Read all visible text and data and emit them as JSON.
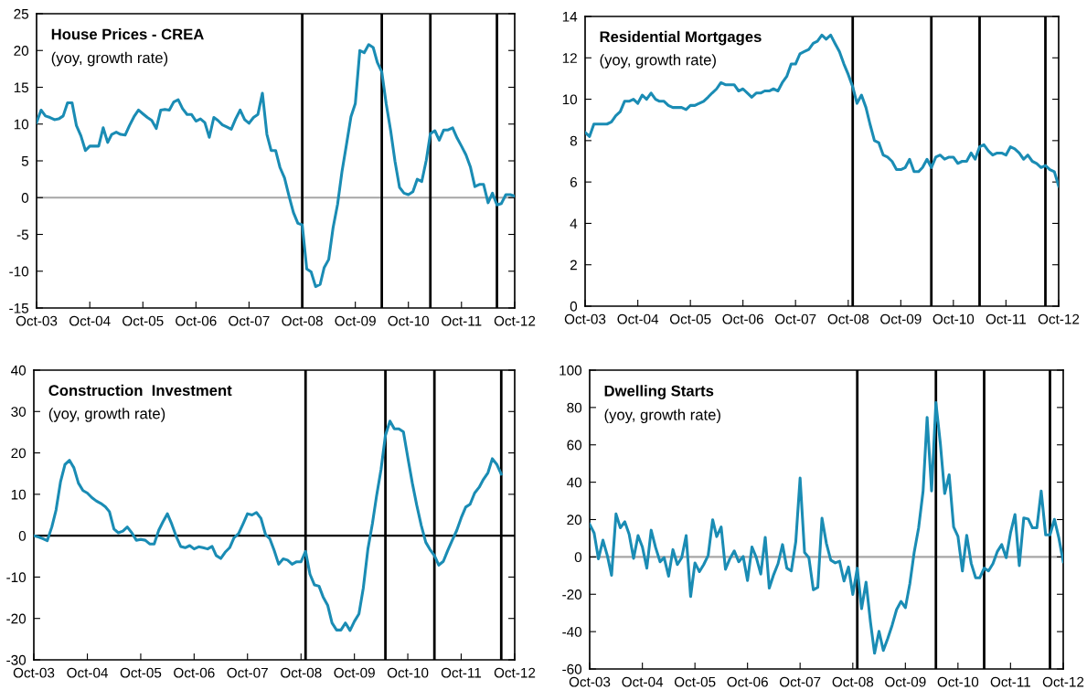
{
  "chart_data": [
    {
      "type": "line",
      "title": "House Prices - CREA",
      "subtitle": "(yoy, growth rate)",
      "line_style": "solid",
      "marker": "none",
      "grid": false,
      "legend": false,
      "x": [
        "2003-10",
        "2003-11",
        "2003-12",
        "2004-01",
        "2004-02",
        "2004-03",
        "2004-04",
        "2004-05",
        "2004-06",
        "2004-07",
        "2004-08",
        "2004-09",
        "2004-10",
        "2004-11",
        "2004-12",
        "2005-01",
        "2005-02",
        "2005-03",
        "2005-04",
        "2005-05",
        "2005-06",
        "2005-07",
        "2005-08",
        "2005-09",
        "2005-10",
        "2005-11",
        "2005-12",
        "2006-01",
        "2006-02",
        "2006-03",
        "2006-04",
        "2006-05",
        "2006-06",
        "2006-07",
        "2006-08",
        "2006-09",
        "2006-10",
        "2006-11",
        "2006-12",
        "2007-01",
        "2007-02",
        "2007-03",
        "2007-04",
        "2007-05",
        "2007-06",
        "2007-07",
        "2007-08",
        "2007-09",
        "2007-10",
        "2007-11",
        "2007-12",
        "2008-01",
        "2008-02",
        "2008-03",
        "2008-04",
        "2008-05",
        "2008-06",
        "2008-07",
        "2008-08",
        "2008-09",
        "2008-10",
        "2008-11",
        "2008-12",
        "2009-01",
        "2009-02",
        "2009-03",
        "2009-04",
        "2009-05",
        "2009-06",
        "2009-07",
        "2009-08",
        "2009-09",
        "2009-10",
        "2009-11",
        "2009-12",
        "2010-01",
        "2010-02",
        "2010-03",
        "2010-04",
        "2010-05",
        "2010-06",
        "2010-07",
        "2010-08",
        "2010-09",
        "2010-10",
        "2010-11",
        "2010-12",
        "2011-01",
        "2011-02",
        "2011-03",
        "2011-04",
        "2011-05",
        "2011-06",
        "2011-07",
        "2011-08",
        "2011-09",
        "2011-10",
        "2011-11",
        "2011-12",
        "2012-01",
        "2012-02",
        "2012-03",
        "2012-04",
        "2012-05",
        "2012-06",
        "2012-07",
        "2012-08",
        "2012-09",
        "2012-10"
      ],
      "series": [
        {
          "color": "#1a8cb4",
          "values": [
            10.2,
            11.9,
            11.1,
            10.9,
            10.6,
            10.7,
            11.1,
            12.9,
            12.9,
            9.8,
            8.4,
            6.4,
            7.0,
            7.0,
            7.0,
            9.5,
            7.5,
            8.6,
            8.9,
            8.6,
            8.5,
            9.8,
            11.0,
            11.9,
            11.4,
            10.9,
            10.5,
            9.4,
            11.9,
            12.0,
            11.9,
            13.0,
            13.3,
            12.1,
            11.3,
            11.3,
            10.4,
            10.7,
            10.2,
            8.2,
            10.9,
            10.5,
            9.9,
            9.6,
            9.3,
            10.7,
            11.9,
            10.6,
            10.1,
            10.9,
            11.3,
            14.2,
            8.6,
            6.4,
            6.4,
            4.1,
            2.7,
            0.3,
            -2.0,
            -3.5,
            -3.7,
            -9.7,
            -10.1,
            -12.1,
            -11.8,
            -9.5,
            -8.4,
            -4.1,
            -0.9,
            3.5,
            7.2,
            11.0,
            12.8,
            20.0,
            19.7,
            20.8,
            20.4,
            18.4,
            17.1,
            12.8,
            9.1,
            4.9,
            1.4,
            0.6,
            0.4,
            0.8,
            2.5,
            2.2,
            5.1,
            8.7,
            9.1,
            7.8,
            9.2,
            9.2,
            9.5,
            8.1,
            7.0,
            5.8,
            4.2,
            1.5,
            1.8,
            1.8,
            -0.7,
            0.6,
            -1.0,
            -0.8,
            0.4,
            0.4,
            0.2
          ]
        }
      ],
      "xlim": [
        "2003-10",
        "2012-10"
      ],
      "xticks": [
        {
          "value": "2003-10",
          "label": "Oct-03"
        },
        {
          "value": "2004-10",
          "label": "Oct-04"
        },
        {
          "value": "2005-10",
          "label": "Oct-05"
        },
        {
          "value": "2006-10",
          "label": "Oct-06"
        },
        {
          "value": "2007-10",
          "label": "Oct-07"
        },
        {
          "value": "2008-10",
          "label": "Oct-08"
        },
        {
          "value": "2009-10",
          "label": "Oct-09"
        },
        {
          "value": "2010-10",
          "label": "Oct-10"
        },
        {
          "value": "2011-10",
          "label": "Oct-11"
        },
        {
          "value": "2012-10",
          "label": "Oct-12"
        }
      ],
      "ylim": [
        -15,
        25
      ],
      "yticks": [
        -15,
        -10,
        -5,
        0,
        5,
        10,
        15,
        20,
        25
      ],
      "ref_lines": [
        {
          "axis": "y",
          "value": 0,
          "color": "#a6a6a6"
        },
        {
          "axis": "x",
          "value": "2008-10",
          "color": "#000000"
        },
        {
          "axis": "x",
          "value": "2010-04",
          "color": "#000000"
        },
        {
          "axis": "x",
          "value": "2011-03",
          "color": "#000000"
        },
        {
          "axis": "x",
          "value": "2012-06",
          "color": "#000000"
        }
      ]
    },
    {
      "type": "line",
      "title": "Residential Mortgages",
      "subtitle": "(yoy, growth rate)",
      "line_style": "solid",
      "marker": "none",
      "grid": false,
      "legend": false,
      "x": [
        "2003-10",
        "2003-11",
        "2003-12",
        "2004-01",
        "2004-02",
        "2004-03",
        "2004-04",
        "2004-05",
        "2004-06",
        "2004-07",
        "2004-08",
        "2004-09",
        "2004-10",
        "2004-11",
        "2004-12",
        "2005-01",
        "2005-02",
        "2005-03",
        "2005-04",
        "2005-05",
        "2005-06",
        "2005-07",
        "2005-08",
        "2005-09",
        "2005-10",
        "2005-11",
        "2005-12",
        "2006-01",
        "2006-02",
        "2006-03",
        "2006-04",
        "2006-05",
        "2006-06",
        "2006-07",
        "2006-08",
        "2006-09",
        "2006-10",
        "2006-11",
        "2006-12",
        "2007-01",
        "2007-02",
        "2007-03",
        "2007-04",
        "2007-05",
        "2007-06",
        "2007-07",
        "2007-08",
        "2007-09",
        "2007-10",
        "2007-11",
        "2007-12",
        "2008-01",
        "2008-02",
        "2008-03",
        "2008-04",
        "2008-05",
        "2008-06",
        "2008-07",
        "2008-08",
        "2008-09",
        "2008-10",
        "2008-11",
        "2008-12",
        "2009-01",
        "2009-02",
        "2009-03",
        "2009-04",
        "2009-05",
        "2009-06",
        "2009-07",
        "2009-08",
        "2009-09",
        "2009-10",
        "2009-11",
        "2009-12",
        "2010-01",
        "2010-02",
        "2010-03",
        "2010-04",
        "2010-05",
        "2010-06",
        "2010-07",
        "2010-08",
        "2010-09",
        "2010-10",
        "2010-11",
        "2010-12",
        "2011-01",
        "2011-02",
        "2011-03",
        "2011-04",
        "2011-05",
        "2011-06",
        "2011-07",
        "2011-08",
        "2011-09",
        "2011-10",
        "2011-11",
        "2011-12",
        "2012-01",
        "2012-02",
        "2012-03",
        "2012-04",
        "2012-05",
        "2012-06",
        "2012-07",
        "2012-08",
        "2012-09",
        "2012-10"
      ],
      "series": [
        {
          "color": "#1a8cb4",
          "values": [
            8.4,
            8.2,
            8.8,
            8.8,
            8.8,
            8.8,
            8.9,
            9.2,
            9.4,
            9.9,
            9.9,
            10.0,
            9.8,
            10.2,
            10.0,
            10.3,
            10.0,
            9.9,
            9.9,
            9.7,
            9.6,
            9.6,
            9.6,
            9.5,
            9.7,
            9.7,
            9.8,
            9.9,
            10.1,
            10.3,
            10.5,
            10.8,
            10.7,
            10.7,
            10.7,
            10.4,
            10.5,
            10.3,
            10.1,
            10.3,
            10.3,
            10.4,
            10.4,
            10.5,
            10.4,
            10.8,
            11.1,
            11.7,
            11.7,
            12.2,
            12.3,
            12.4,
            12.7,
            12.8,
            13.1,
            12.9,
            13.1,
            12.7,
            12.3,
            11.7,
            11.2,
            10.6,
            9.8,
            10.2,
            9.6,
            8.8,
            8.0,
            7.9,
            7.3,
            7.2,
            7.0,
            6.6,
            6.6,
            6.7,
            7.1,
            6.5,
            6.5,
            6.7,
            7.1,
            6.7,
            7.2,
            7.3,
            7.1,
            7.2,
            7.2,
            6.9,
            7.0,
            7.0,
            7.4,
            7.1,
            7.7,
            7.8,
            7.5,
            7.3,
            7.4,
            7.4,
            7.3,
            7.7,
            7.6,
            7.4,
            7.1,
            7.3,
            7.0,
            6.9,
            6.7,
            6.8,
            6.6,
            6.5,
            5.8
          ]
        }
      ],
      "xlim": [
        "2003-10",
        "2012-10"
      ],
      "xticks": [
        {
          "value": "2003-10",
          "label": "Oct-03"
        },
        {
          "value": "2004-10",
          "label": "Oct-04"
        },
        {
          "value": "2005-10",
          "label": "Oct-05"
        },
        {
          "value": "2006-10",
          "label": "Oct-06"
        },
        {
          "value": "2007-10",
          "label": "Oct-07"
        },
        {
          "value": "2008-10",
          "label": "Oct-08"
        },
        {
          "value": "2009-10",
          "label": "Oct-09"
        },
        {
          "value": "2010-10",
          "label": "Oct-10"
        },
        {
          "value": "2011-10",
          "label": "Oct-11"
        },
        {
          "value": "2012-10",
          "label": "Oct-12"
        }
      ],
      "ylim": [
        0,
        14
      ],
      "yticks": [
        0,
        2,
        4,
        6,
        8,
        10,
        12,
        14
      ],
      "ref_lines": [
        {
          "axis": "x",
          "value": "2008-11",
          "color": "#000000"
        },
        {
          "axis": "x",
          "value": "2010-05",
          "color": "#000000"
        },
        {
          "axis": "x",
          "value": "2011-04",
          "color": "#000000"
        },
        {
          "axis": "x",
          "value": "2012-07",
          "color": "#000000"
        }
      ]
    },
    {
      "type": "line",
      "title": "Construction  Investment",
      "subtitle": "(yoy, growth rate)",
      "line_style": "solid",
      "marker": "none",
      "grid": false,
      "legend": false,
      "x": [
        "2003-10",
        "2003-11",
        "2003-12",
        "2004-01",
        "2004-02",
        "2004-03",
        "2004-04",
        "2004-05",
        "2004-06",
        "2004-07",
        "2004-08",
        "2004-09",
        "2004-10",
        "2004-11",
        "2004-12",
        "2005-01",
        "2005-02",
        "2005-03",
        "2005-04",
        "2005-05",
        "2005-06",
        "2005-07",
        "2005-08",
        "2005-09",
        "2005-10",
        "2005-11",
        "2005-12",
        "2006-01",
        "2006-02",
        "2006-03",
        "2006-04",
        "2006-05",
        "2006-06",
        "2006-07",
        "2006-08",
        "2006-09",
        "2006-10",
        "2006-11",
        "2006-12",
        "2007-01",
        "2007-02",
        "2007-03",
        "2007-04",
        "2007-05",
        "2007-06",
        "2007-07",
        "2007-08",
        "2007-09",
        "2007-10",
        "2007-11",
        "2007-12",
        "2008-01",
        "2008-02",
        "2008-03",
        "2008-04",
        "2008-05",
        "2008-06",
        "2008-07",
        "2008-08",
        "2008-09",
        "2008-10",
        "2008-11",
        "2008-12",
        "2009-01",
        "2009-02",
        "2009-03",
        "2009-04",
        "2009-05",
        "2009-06",
        "2009-07",
        "2009-08",
        "2009-09",
        "2009-10",
        "2009-11",
        "2009-12",
        "2010-01",
        "2010-02",
        "2010-03",
        "2010-04",
        "2010-05",
        "2010-06",
        "2010-07",
        "2010-08",
        "2010-09",
        "2010-10",
        "2010-11",
        "2010-12",
        "2011-01",
        "2011-02",
        "2011-03",
        "2011-04",
        "2011-05",
        "2011-06",
        "2011-07",
        "2011-08",
        "2011-09",
        "2011-10",
        "2011-11",
        "2011-12",
        "2012-01",
        "2012-02",
        "2012-03",
        "2012-04",
        "2012-05",
        "2012-06",
        "2012-07"
      ],
      "series": [
        {
          "color": "#1a8cb4",
          "values": [
            0,
            -0.3,
            -0.7,
            -1.2,
            2.1,
            6.2,
            13.1,
            17.2,
            18.2,
            16.4,
            12.7,
            10.9,
            10.3,
            9.2,
            8.4,
            7.8,
            7.0,
            5.8,
            1.6,
            0.7,
            1.1,
            2.1,
            0.7,
            -1.1,
            -0.9,
            -1.1,
            -2.0,
            -2.0,
            1.3,
            3.3,
            5.3,
            2.8,
            -0.2,
            -2.6,
            -2.9,
            -2.4,
            -3.2,
            -2.7,
            -2.9,
            -3.2,
            -2.6,
            -4.8,
            -5.5,
            -4.0,
            -2.9,
            -0.5,
            0.5,
            2.9,
            5.3,
            5.0,
            5.6,
            4.2,
            0.3,
            -0.7,
            -3.6,
            -6.9,
            -5.6,
            -5.9,
            -6.9,
            -6.3,
            -6.3,
            -3.8,
            -9.3,
            -11.9,
            -12.2,
            -14.8,
            -16.8,
            -21.1,
            -22.8,
            -22.8,
            -21.1,
            -22.9,
            -20.7,
            -18.9,
            -12.6,
            -3.3,
            2.9,
            9.5,
            16.0,
            24.2,
            27.7,
            25.8,
            25.8,
            25.1,
            18.9,
            12.7,
            7.4,
            2.5,
            -1.6,
            -3.3,
            -4.8,
            -7.1,
            -6.2,
            -3.6,
            -1.1,
            1.3,
            4.3,
            6.9,
            7.6,
            10.3,
            11.7,
            13.6,
            15.2,
            18.6,
            17.2,
            14.9
          ]
        }
      ],
      "xlim": [
        "2003-10",
        "2012-10"
      ],
      "xticks": [
        {
          "value": "2003-10",
          "label": "Oct-03"
        },
        {
          "value": "2004-10",
          "label": "Oct-04"
        },
        {
          "value": "2005-10",
          "label": "Oct-05"
        },
        {
          "value": "2006-10",
          "label": "Oct-06"
        },
        {
          "value": "2007-10",
          "label": "Oct-07"
        },
        {
          "value": "2008-10",
          "label": "Oct-08"
        },
        {
          "value": "2009-10",
          "label": "Oct-09"
        },
        {
          "value": "2010-10",
          "label": "Oct-10"
        },
        {
          "value": "2011-10",
          "label": "Oct-11"
        },
        {
          "value": "2012-10",
          "label": "Oct-12"
        }
      ],
      "ylim": [
        -30,
        40
      ],
      "yticks": [
        -30,
        -20,
        -10,
        0,
        10,
        20,
        30,
        40
      ],
      "ref_lines": [
        {
          "axis": "y",
          "value": 0,
          "color": "#000000"
        },
        {
          "axis": "x",
          "value": "2008-11",
          "color": "#000000"
        },
        {
          "axis": "x",
          "value": "2010-05",
          "color": "#000000"
        },
        {
          "axis": "x",
          "value": "2011-04",
          "color": "#000000"
        },
        {
          "axis": "x",
          "value": "2012-07",
          "color": "#000000"
        }
      ]
    },
    {
      "type": "line",
      "title": "Dwelling Starts",
      "subtitle": "(yoy, growth rate)",
      "line_style": "solid",
      "marker": "none",
      "grid": false,
      "legend": false,
      "x": [
        "2003-10",
        "2003-11",
        "2003-12",
        "2004-01",
        "2004-02",
        "2004-03",
        "2004-04",
        "2004-05",
        "2004-06",
        "2004-07",
        "2004-08",
        "2004-09",
        "2004-10",
        "2004-11",
        "2004-12",
        "2005-01",
        "2005-02",
        "2005-03",
        "2005-04",
        "2005-05",
        "2005-06",
        "2005-07",
        "2005-08",
        "2005-09",
        "2005-10",
        "2005-11",
        "2005-12",
        "2006-01",
        "2006-02",
        "2006-03",
        "2006-04",
        "2006-05",
        "2006-06",
        "2006-07",
        "2006-08",
        "2006-09",
        "2006-10",
        "2006-11",
        "2006-12",
        "2007-01",
        "2007-02",
        "2007-03",
        "2007-04",
        "2007-05",
        "2007-06",
        "2007-07",
        "2007-08",
        "2007-09",
        "2007-10",
        "2007-11",
        "2007-12",
        "2008-01",
        "2008-02",
        "2008-03",
        "2008-04",
        "2008-05",
        "2008-06",
        "2008-07",
        "2008-08",
        "2008-09",
        "2008-10",
        "2008-11",
        "2008-12",
        "2009-01",
        "2009-02",
        "2009-03",
        "2009-04",
        "2009-05",
        "2009-06",
        "2009-07",
        "2009-08",
        "2009-09",
        "2009-10",
        "2009-11",
        "2009-12",
        "2010-01",
        "2010-02",
        "2010-03",
        "2010-04",
        "2010-05",
        "2010-06",
        "2010-07",
        "2010-08",
        "2010-09",
        "2010-10",
        "2010-11",
        "2010-12",
        "2011-01",
        "2011-02",
        "2011-03",
        "2011-04",
        "2011-05",
        "2011-06",
        "2011-07",
        "2011-08",
        "2011-09",
        "2011-10",
        "2011-11",
        "2011-12",
        "2012-01",
        "2012-02",
        "2012-03",
        "2012-04",
        "2012-05",
        "2012-06",
        "2012-07",
        "2012-08",
        "2012-09",
        "2012-10"
      ],
      "series": [
        {
          "color": "#1a8cb4",
          "values": [
            17.5,
            12.8,
            -1,
            9,
            0.6,
            -9.8,
            23,
            15.6,
            18.8,
            12.2,
            -0.8,
            11.4,
            5.3,
            -6,
            14.3,
            5,
            -2.6,
            -0.4,
            -10.3,
            3.9,
            -4.1,
            -0.4,
            11.4,
            -21.2,
            -3.2,
            -7.9,
            -4.1,
            0.9,
            19.9,
            10.9,
            16,
            -6.6,
            -0.9,
            3.2,
            -2.6,
            0.2,
            -12.6,
            5.3,
            -0.4,
            -9.2,
            10.5,
            -16.7,
            -9.4,
            -3.6,
            6.6,
            -6,
            -7.5,
            8.1,
            42.2,
            2.4,
            -0.4,
            -17.6,
            -16.3,
            20.7,
            7.1,
            -1.7,
            -3.2,
            -2.3,
            -12.9,
            -5.4,
            -20.1,
            -6,
            -27.7,
            -13.5,
            -35.1,
            -51.6,
            -39.8,
            -50.1,
            -43.6,
            -36.6,
            -28.2,
            -23.8,
            -27.2,
            -14.4,
            2.4,
            15.6,
            35.3,
            74.7,
            35.3,
            82.6,
            60.6,
            33.9,
            44,
            16,
            11,
            -7.5,
            11.6,
            -3.4,
            -11.2,
            -11.2,
            -6,
            -7.5,
            -3.6,
            2.8,
            6.6,
            -0.4,
            12.8,
            22.7,
            -4.7,
            20.9,
            20.3,
            15.6,
            15.6,
            35.3,
            11.8,
            11.8,
            20.1,
            10,
            -2.6
          ]
        }
      ],
      "xlim": [
        "2003-10",
        "2012-10"
      ],
      "xticks": [
        {
          "value": "2003-10",
          "label": "Oct-03"
        },
        {
          "value": "2004-10",
          "label": "Oct-04"
        },
        {
          "value": "2005-10",
          "label": "Oct-05"
        },
        {
          "value": "2006-10",
          "label": "Oct-06"
        },
        {
          "value": "2007-10",
          "label": "Oct-07"
        },
        {
          "value": "2008-10",
          "label": "Oct-08"
        },
        {
          "value": "2009-10",
          "label": "Oct-09"
        },
        {
          "value": "2010-10",
          "label": "Oct-10"
        },
        {
          "value": "2011-10",
          "label": "Oct-11"
        },
        {
          "value": "2012-10",
          "label": "Oct-12"
        }
      ],
      "ylim": [
        -60,
        100
      ],
      "yticks": [
        -60,
        -40,
        -20,
        0,
        20,
        40,
        60,
        80,
        100
      ],
      "ref_lines": [
        {
          "axis": "y",
          "value": 0,
          "color": "#a6a6a6"
        },
        {
          "axis": "x",
          "value": "2008-11",
          "color": "#000000"
        },
        {
          "axis": "x",
          "value": "2010-05",
          "color": "#000000"
        },
        {
          "axis": "x",
          "value": "2011-04",
          "color": "#000000"
        },
        {
          "axis": "x",
          "value": "2012-07",
          "color": "#000000"
        }
      ]
    }
  ]
}
